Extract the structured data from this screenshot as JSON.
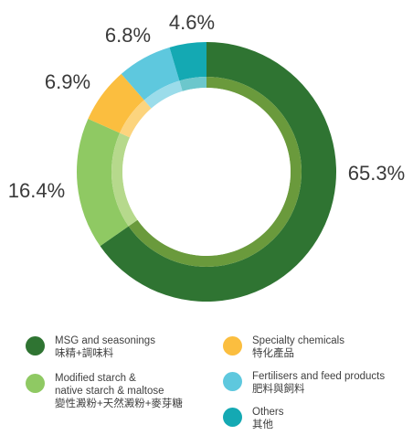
{
  "chart_data": {
    "type": "pie",
    "title": "",
    "categories": [
      "MSG and seasonings 味精+調味料",
      "Modified starch & native starch & maltose 變性澱粉+天然澱粉+麥芽糖",
      "Specialty chemicals 特化產品",
      "Fertilisers and feed products 肥料與飼料",
      "Others 其他"
    ],
    "values": [
      65.3,
      16.4,
      6.9,
      6.8,
      4.6
    ],
    "value_labels": [
      "65.3%",
      "16.4%",
      "6.9%",
      "6.8%",
      "4.6%"
    ],
    "colors": [
      "#2f7432",
      "#8fc963",
      "#fbbe3f",
      "#5ec8de",
      "#14a9b3"
    ],
    "inner_colors": [
      "#6a9a3c",
      "#b6d98c",
      "#fcd47e",
      "#9bdcea",
      "#6cc7cc"
    ],
    "legend_placement": "bottom"
  },
  "legend": {
    "items": [
      {
        "line1": "MSG and seasonings",
        "line2": "味精+調味料",
        "line3": "",
        "color": "#2f7432"
      },
      {
        "line1": "Modified starch &",
        "line2": "native starch & maltose",
        "line3": "變性澱粉+天然澱粉+麥芽糖",
        "color": "#8fc963"
      },
      {
        "line1": "Specialty chemicals",
        "line2": "特化產品",
        "line3": "",
        "color": "#fbbe3f"
      },
      {
        "line1": "Fertilisers and feed products",
        "line2": "肥料與飼料",
        "line3": "",
        "color": "#5ec8de"
      },
      {
        "line1": "Others",
        "line2": "其他",
        "line3": "",
        "color": "#14a9b3"
      }
    ]
  }
}
